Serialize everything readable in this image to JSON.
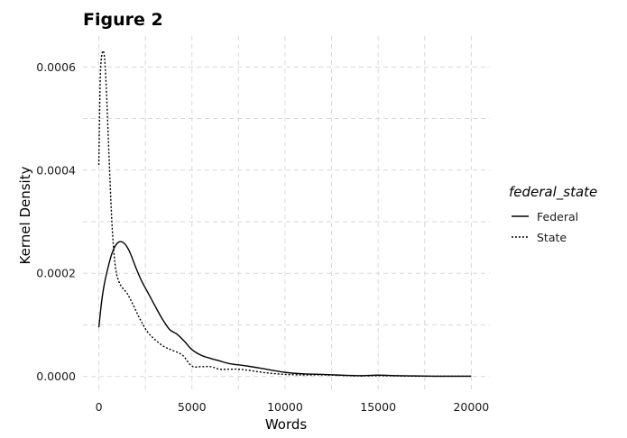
{
  "chart_data": {
    "type": "line",
    "title": "Figure 2",
    "xlabel": "Words",
    "ylabel": "Kernel Density",
    "xlim": [
      -850,
      21000
    ],
    "ylim": [
      -2.5e-05,
      0.00066
    ],
    "xticks": [
      0,
      5000,
      10000,
      15000,
      20000
    ],
    "xtick_labels": [
      "0",
      "5000",
      "10000",
      "15000",
      "20000"
    ],
    "yticks": [
      0,
      0.0002,
      0.0004,
      0.0006
    ],
    "ytick_labels": [
      "0.0000",
      "0.0002",
      "0.0004",
      "0.0006"
    ],
    "grid": true,
    "legend": {
      "title": "federal_state",
      "placement": "right"
    },
    "series": [
      {
        "name": "Federal",
        "linetype": "solid",
        "color": "#000000",
        "x": [
          0,
          150,
          300,
          500,
          700,
          900,
          1100,
          1300,
          1500,
          1700,
          2000,
          2300,
          2600,
          3000,
          3400,
          3800,
          4200,
          4600,
          5000,
          5500,
          6000,
          6500,
          7000,
          8000,
          9000,
          10000,
          11000,
          12000,
          13000,
          14000,
          15000,
          16000,
          17000,
          18000,
          19000,
          20000
        ],
        "y": [
          9.5e-05,
          0.000145,
          0.00018,
          0.000212,
          0.000238,
          0.000254,
          0.000261,
          0.00026,
          0.000252,
          0.000238,
          0.00021,
          0.000185,
          0.000165,
          0.000138,
          0.000112,
          9.1e-05,
          8.2e-05,
          6.8e-05,
          5.2e-05,
          4.1e-05,
          3.5e-05,
          3e-05,
          2.5e-05,
          2e-05,
          1.4e-05,
          8e-06,
          5e-06,
          4e-06,
          2.5e-06,
          1.5e-06,
          2.5e-06,
          1.5e-06,
          1e-06,
          5e-07,
          5e-07,
          5e-07
        ]
      },
      {
        "name": "State",
        "linetype": "dashed",
        "color": "#000000",
        "x": [
          0,
          50,
          100,
          200,
          300,
          400,
          500,
          600,
          700,
          800,
          900,
          1000,
          1200,
          1500,
          1800,
          2200,
          2600,
          3000,
          3500,
          4000,
          4500,
          5000,
          5500,
          6000,
          6500,
          7000,
          7500,
          8000,
          9000,
          10000,
          11000,
          12000,
          13000,
          14000,
          15000,
          16000,
          17000,
          18000,
          19000,
          20000
        ],
        "y": [
          0.00041,
          0.00053,
          0.0006,
          0.00063,
          0.00062,
          0.00056,
          0.00047,
          0.00038,
          0.0003,
          0.000245,
          0.00021,
          0.000192,
          0.000175,
          0.000162,
          0.000142,
          0.000112,
          8.7e-05,
          7.2e-05,
          5.8e-05,
          5e-05,
          4.1e-05,
          2e-05,
          1.9e-05,
          1.9e-05,
          1.4e-05,
          1.4e-05,
          1.4e-05,
          1.2e-05,
          7e-06,
          4e-06,
          3e-06,
          3e-06,
          2e-06,
          1e-06,
          1.5e-06,
          1e-06,
          5e-07,
          5e-07,
          5e-07,
          5e-07
        ]
      }
    ]
  }
}
